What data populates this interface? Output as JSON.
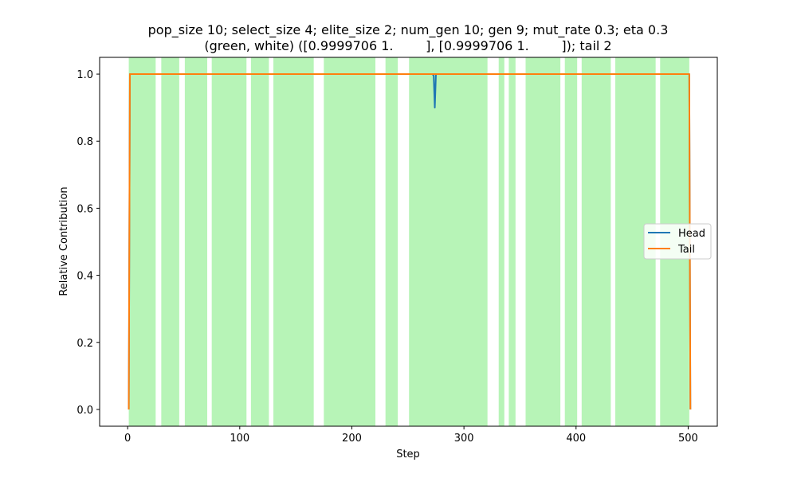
{
  "chart_data": {
    "type": "line",
    "title_line1": "pop_size 10; select_size 4; elite_size 2; num_gen 10; gen 9; mut_rate 0.3; eta 0.3",
    "title_line2": "(green, white) ([0.9999706 1.        ], [0.9999706 1.        ]); tail 2",
    "xlabel": "Step",
    "ylabel": "Relative Contribution",
    "xlim": [
      -25,
      526
    ],
    "ylim": [
      -0.05,
      1.05
    ],
    "xticks": [
      0,
      100,
      200,
      300,
      400,
      500
    ],
    "yticks": [
      0.0,
      0.2,
      0.4,
      0.6,
      0.8,
      1.0
    ],
    "xtick_labels": [
      "0",
      "100",
      "200",
      "300",
      "400",
      "500"
    ],
    "ytick_labels": [
      "0.0",
      "0.2",
      "0.4",
      "0.6",
      "0.8",
      "1.0"
    ],
    "shaded_color": "#90ee90",
    "shaded_regions": [
      [
        1,
        25
      ],
      [
        30,
        46
      ],
      [
        51,
        71
      ],
      [
        75,
        106
      ],
      [
        110,
        126
      ],
      [
        130,
        166
      ],
      [
        175,
        221
      ],
      [
        230,
        241
      ],
      [
        251,
        321
      ],
      [
        331,
        336
      ],
      [
        340,
        346
      ],
      [
        355,
        386
      ],
      [
        390,
        401
      ],
      [
        405,
        431
      ],
      [
        435,
        471
      ],
      [
        475,
        501
      ]
    ],
    "series": [
      {
        "name": "Head",
        "color": "#1f77b4",
        "x": [
          1,
          2,
          272,
          273,
          274,
          275,
          501,
          502
        ],
        "y": [
          0.0,
          1.0,
          1.0,
          0.995,
          0.9,
          1.0,
          1.0,
          0.0
        ]
      },
      {
        "name": "Tail",
        "color": "#ff7f0e",
        "x": [
          1,
          2,
          501,
          502
        ],
        "y": [
          0.0,
          1.0,
          1.0,
          0.0
        ]
      }
    ],
    "legend_position": "center-right"
  }
}
